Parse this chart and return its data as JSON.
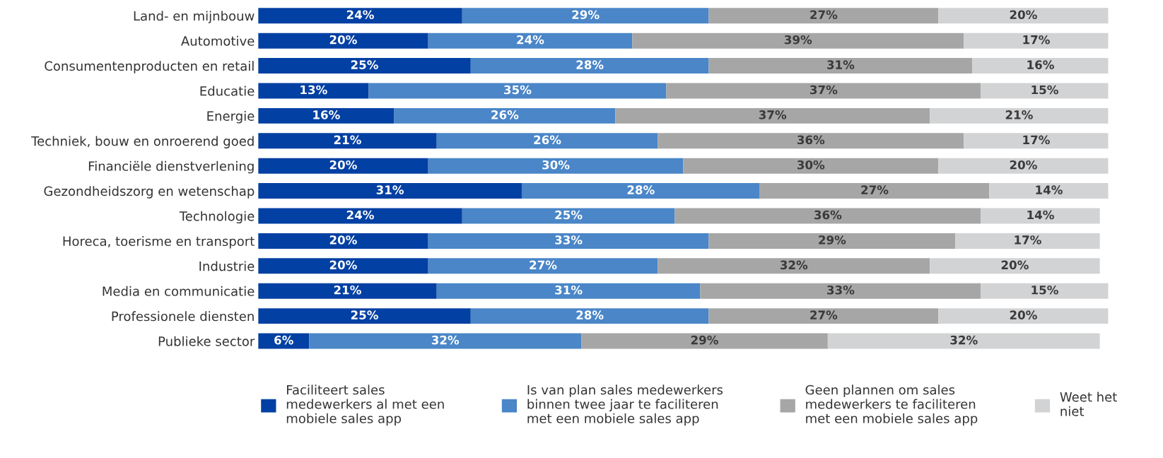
{
  "chart_data": {
    "type": "bar",
    "orientation": "horizontal",
    "stacked": true,
    "legend": "bottom",
    "grid": false,
    "tick_labels": "y",
    "categories": [
      "Land- en mijnbouw",
      "Automotive",
      "Consumentenproducten en retail",
      "Educatie",
      "Energie",
      "Techniek, bouw en onroerend goed",
      "Financiële dienstverlening",
      "Gezondheidszorg en wetenschap",
      "Technologie",
      "Horeca, toerisme en transport",
      "Industrie",
      "Media en communicatie",
      "Professionele diensten",
      "Publieke sector"
    ],
    "series": [
      {
        "name": "Faciliteert sales\nmedewerkers al met een\nmobiele sales app",
        "color": "#0340a3",
        "values": [
          24,
          20,
          25,
          13,
          16,
          21,
          20,
          31,
          24,
          20,
          20,
          21,
          25,
          6
        ],
        "value_labels": [
          "24%",
          "20%",
          "25%",
          "13%",
          "16%",
          "21%",
          "20%",
          "31%",
          "24%",
          "20%",
          "20%",
          "21%",
          "25%",
          "6%"
        ]
      },
      {
        "name": "Is van plan sales medewerkers\nbinnen twee jaar te faciliteren\nmet een mobiele sales app",
        "color": "#4a86c8",
        "values": [
          29,
          24,
          28,
          35,
          26,
          26,
          30,
          28,
          25,
          33,
          27,
          31,
          28,
          32
        ],
        "value_labels": [
          "29%",
          "24%",
          "28%",
          "35%",
          "26%",
          "26%",
          "30%",
          "28%",
          "25%",
          "33%",
          "27%",
          "31%",
          "28%",
          "32%"
        ]
      },
      {
        "name": "Geen plannen om sales\nmedewerkers te faciliteren\nmet een mobiele sales app",
        "color": "#a6a6a6",
        "values": [
          27,
          39,
          31,
          37,
          37,
          36,
          30,
          27,
          36,
          29,
          32,
          33,
          27,
          29
        ],
        "value_labels": [
          "27%",
          "39%",
          "31%",
          "37%",
          "37%",
          "36%",
          "30%",
          "27%",
          "36%",
          "29%",
          "32%",
          "33%",
          "27%",
          "29%"
        ]
      },
      {
        "name": "Weet het\nniet",
        "color": "#d2d3d5",
        "values": [
          20,
          17,
          16,
          15,
          21,
          17,
          20,
          14,
          14,
          17,
          20,
          15,
          20,
          32
        ],
        "value_labels": [
          "20%",
          "17%",
          "16%",
          "15%",
          "21%",
          "17%",
          "20%",
          "14%",
          "14%",
          "17%",
          "20%",
          "15%",
          "20%",
          "32%"
        ]
      }
    ]
  }
}
